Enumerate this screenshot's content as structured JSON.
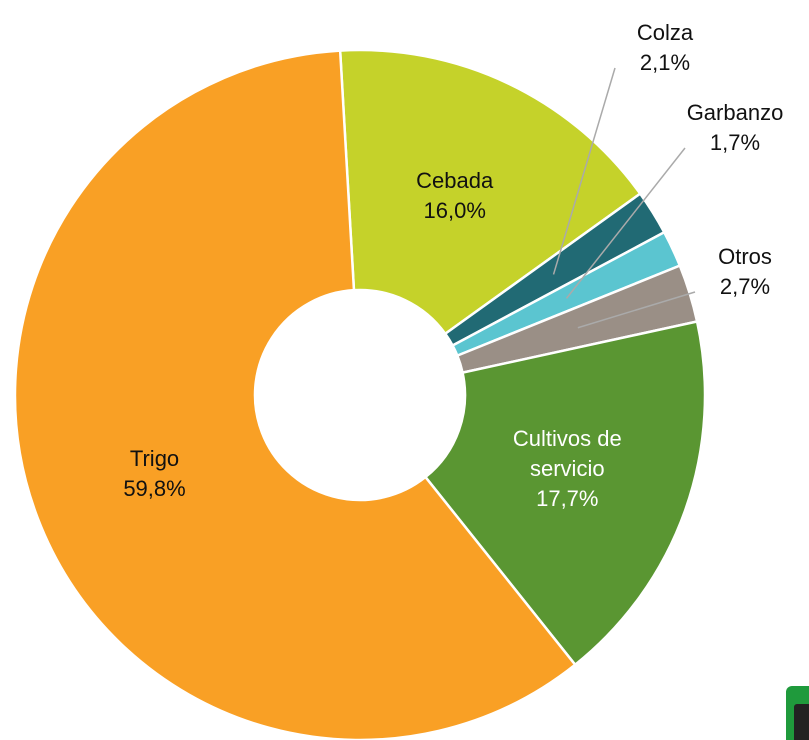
{
  "chart_data": {
    "type": "pie",
    "categories": [
      "Cebada",
      "Colza",
      "Garbanzo",
      "Otros",
      "Cultivos de servicio",
      "Trigo"
    ],
    "values": [
      16.0,
      2.1,
      1.7,
      2.7,
      17.7,
      59.8
    ],
    "value_labels": [
      "16,0%",
      "2,1%",
      "1,7%",
      "2,7%",
      "17,7%",
      "59,8%"
    ],
    "colors": [
      "#c5d22a",
      "#216a74",
      "#5bc5d0",
      "#9a8f86",
      "#5a9632",
      "#f9a025"
    ]
  }
}
